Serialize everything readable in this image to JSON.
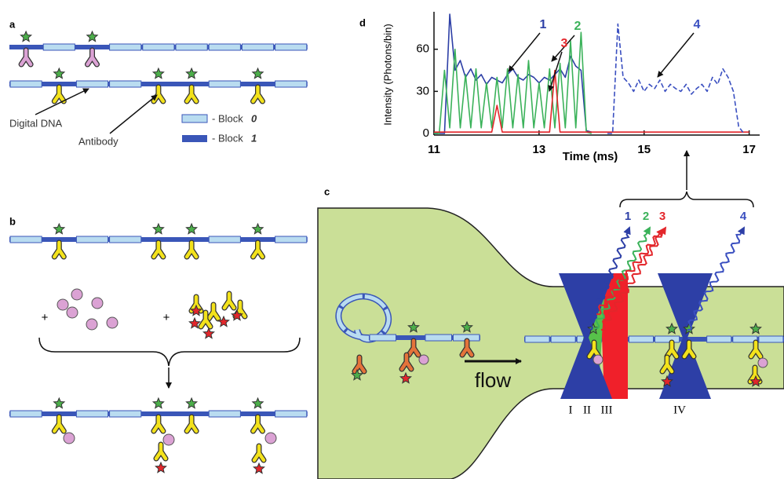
{
  "panel_labels": {
    "a": "a",
    "b": "b",
    "c": "c",
    "d": "d"
  },
  "panel_a": {
    "digital_dna": "Digital DNA",
    "antibody": "Antibody",
    "legend": [
      {
        "prefix": "- Block",
        "index": "0"
      },
      {
        "prefix": "- Block",
        "index": "1"
      }
    ]
  },
  "panel_b": {
    "plus": [
      "+",
      "+"
    ]
  },
  "panel_c": {
    "flow": "flow",
    "regions": [
      "I",
      "II",
      "III",
      "IV"
    ]
  },
  "chart_data": {
    "type": "line",
    "xlabel": "Time (ms)",
    "ylabel": "Intensity (Photons/bin)",
    "x": [
      11,
      11.1,
      11.2,
      11.3,
      11.4,
      11.5,
      11.6,
      11.7,
      11.8,
      11.9,
      12,
      12.1,
      12.2,
      12.3,
      12.4,
      12.5,
      12.6,
      12.7,
      12.8,
      12.9,
      13,
      13.1,
      13.2,
      13.3,
      13.4,
      13.5,
      13.6,
      13.7,
      13.8,
      13.9,
      14,
      14.1,
      14.2,
      14.3,
      14.4,
      14.5,
      14.6,
      14.7,
      14.8,
      14.9,
      15,
      15.1,
      15.2,
      15.3,
      15.4,
      15.5,
      15.6,
      15.7,
      15.8,
      15.9,
      16,
      16.1,
      16.2,
      16.3,
      16.4,
      16.5,
      16.6,
      16.7,
      16.8,
      16.9,
      17
    ],
    "series": [
      {
        "name": "1",
        "color": "#2d3fa6",
        "dashed": false,
        "values": [
          0,
          0,
          0,
          85,
          45,
          52,
          40,
          46,
          38,
          42,
          35,
          40,
          38,
          36,
          42,
          46,
          40,
          38,
          42,
          40,
          36,
          40,
          38,
          42,
          46,
          40,
          55,
          48,
          45,
          2,
          1,
          null,
          null,
          null,
          null,
          null,
          null,
          null,
          null,
          null,
          null,
          null,
          null,
          null,
          null,
          null,
          null,
          null,
          null,
          null,
          null,
          null,
          null,
          null,
          null,
          null,
          null,
          null,
          null,
          null,
          null
        ]
      },
      {
        "name": "2",
        "color": "#3bb25a",
        "dashed": false,
        "values": [
          0,
          0,
          45,
          4,
          60,
          4,
          42,
          4,
          46,
          4,
          36,
          4,
          40,
          4,
          46,
          4,
          42,
          4,
          52,
          4,
          36,
          4,
          46,
          4,
          50,
          4,
          66,
          4,
          72,
          1,
          0,
          null,
          null,
          null,
          null,
          null,
          null,
          null,
          null,
          null,
          null,
          null,
          null,
          null,
          null,
          null,
          null,
          null,
          null,
          null,
          null,
          null,
          null,
          null,
          null,
          null,
          null,
          null,
          null,
          null,
          null
        ]
      },
      {
        "name": "3",
        "color": "#e3262b",
        "dashed": false,
        "values": [
          1,
          1,
          1,
          1,
          1,
          1,
          1,
          1,
          1,
          1,
          1,
          1,
          20,
          1,
          1,
          1,
          1,
          1,
          1,
          1,
          1,
          1,
          1,
          45,
          1,
          1,
          1,
          1,
          1,
          1,
          1,
          1,
          1,
          1,
          1,
          1,
          1,
          1,
          1,
          1,
          1,
          1,
          1,
          1,
          1,
          1,
          1,
          1,
          1,
          1,
          1,
          1,
          1,
          1,
          1,
          1,
          1,
          1,
          1,
          1,
          1
        ]
      },
      {
        "name": "4",
        "color": "#3a4fc0",
        "dashed": true,
        "values": [
          null,
          null,
          null,
          null,
          null,
          null,
          null,
          null,
          null,
          null,
          null,
          null,
          null,
          null,
          null,
          null,
          null,
          null,
          null,
          null,
          null,
          null,
          null,
          null,
          null,
          null,
          null,
          null,
          null,
          null,
          null,
          null,
          null,
          0,
          0,
          78,
          40,
          36,
          30,
          38,
          30,
          35,
          32,
          38,
          30,
          35,
          32,
          30,
          35,
          28,
          32,
          35,
          30,
          40,
          35,
          46,
          40,
          30,
          5,
          0,
          null
        ]
      }
    ],
    "xlim": [
      11,
      17.2
    ],
    "ylim": [
      0,
      85
    ],
    "xticks": [
      11,
      13,
      15,
      17
    ],
    "yticks": [
      0,
      30,
      60
    ]
  }
}
